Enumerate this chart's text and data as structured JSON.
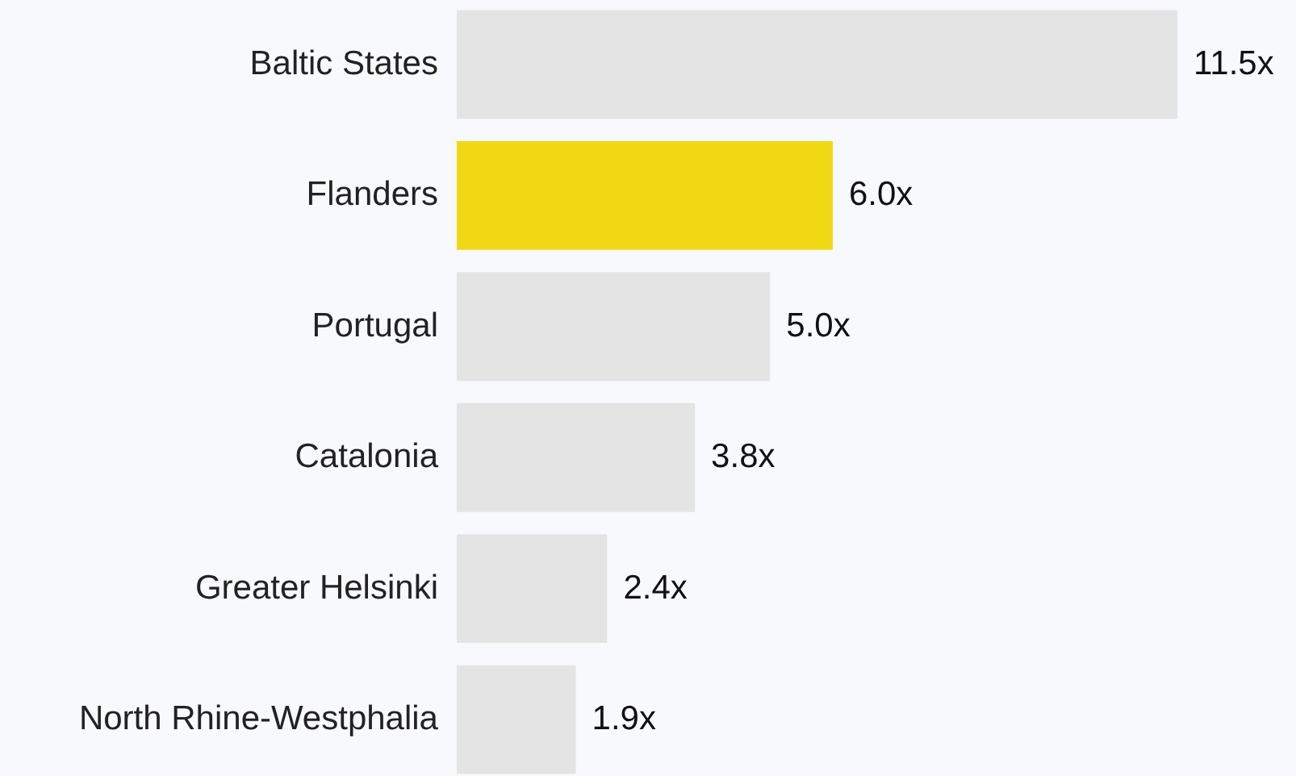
{
  "chart_data": {
    "type": "bar",
    "orientation": "horizontal",
    "categories": [
      "Baltic States",
      "Flanders",
      "Portugal",
      "Catalonia",
      "Greater Helsinki",
      "North Rhine-Westphalia"
    ],
    "values": [
      11.5,
      6.0,
      5.0,
      3.8,
      2.4,
      1.9
    ],
    "colors": [
      "#e4e4e4",
      "#f0d814",
      "#e4e4e4",
      "#e4e4e4",
      "#e4e4e4",
      "#e4e4e4"
    ],
    "value_labels": [
      "11.5x",
      "6.0x",
      "5.0x",
      "3.8x",
      "2.4x",
      "1.9x"
    ]
  }
}
